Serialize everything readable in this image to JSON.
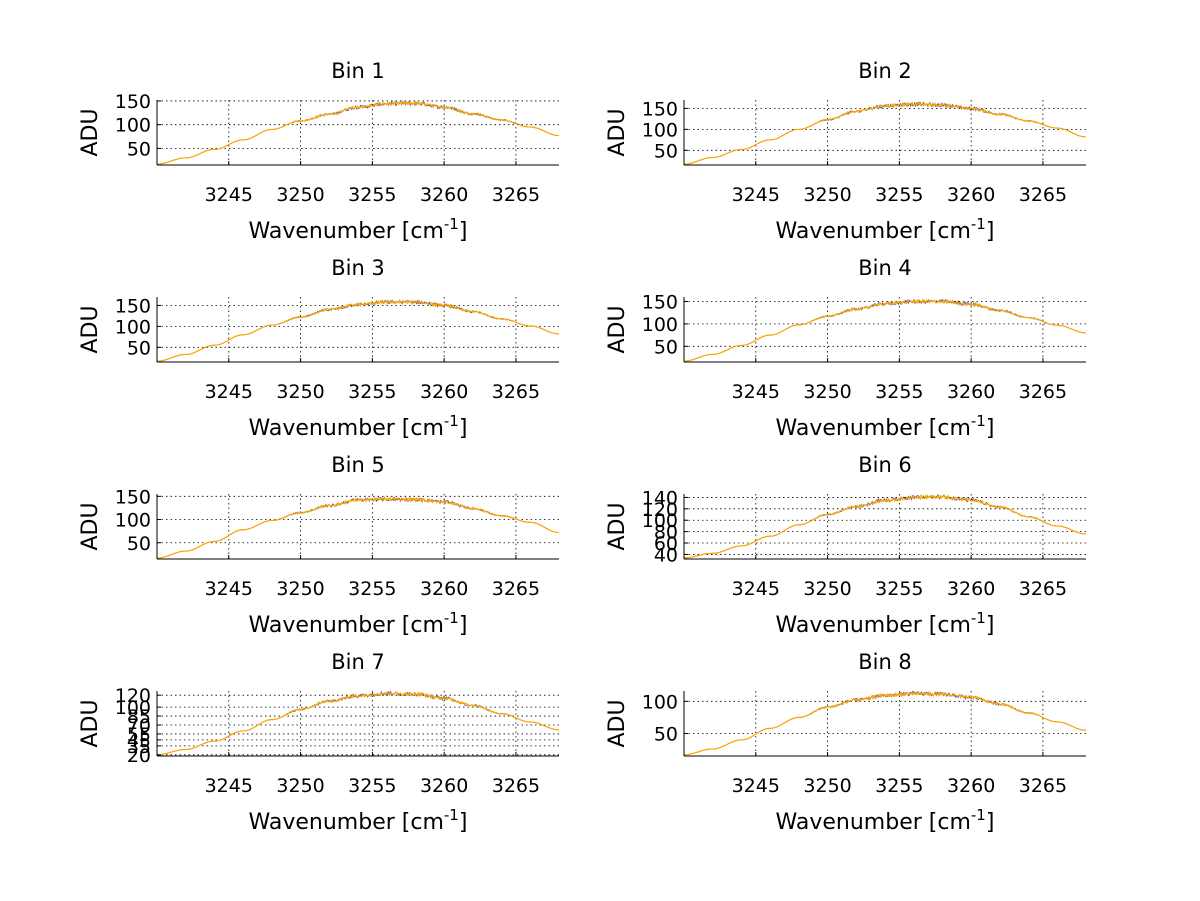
{
  "figure": {
    "background": "#ffffff",
    "line_color": "#ffa500",
    "noise_color": "#1a1a5a",
    "grid_color": "#000000"
  },
  "chart_data": [
    {
      "type": "line",
      "title": "Bin 1",
      "xlabel": "Wavenumber [cm",
      "xlabel_sup": "-1",
      "xlabel_end": "]",
      "ylabel": "ADU",
      "grid": true,
      "xlim": [
        3240,
        3268
      ],
      "xticks": [
        3245,
        3250,
        3255,
        3260,
        3265
      ],
      "ylim": [
        15,
        152
      ],
      "yticks": [
        50,
        100,
        150
      ],
      "series": [
        {
          "x": [
            3240,
            3242,
            3244,
            3246,
            3248,
            3250,
            3252,
            3254,
            3256,
            3258,
            3260,
            3262,
            3264,
            3266,
            3268
          ],
          "values": [
            17,
            30,
            48,
            68,
            90,
            108,
            122,
            137,
            144,
            145,
            137,
            123,
            110,
            95,
            77
          ]
        }
      ]
    },
    {
      "type": "line",
      "title": "Bin 2",
      "xlabel": "Wavenumber [cm",
      "xlabel_sup": "-1",
      "xlabel_end": "]",
      "ylabel": "ADU",
      "grid": true,
      "xlim": [
        3240,
        3268
      ],
      "xticks": [
        3245,
        3250,
        3255,
        3260,
        3265
      ],
      "ylim": [
        15,
        170
      ],
      "yticks": [
        50,
        100,
        150
      ],
      "series": [
        {
          "x": [
            3240,
            3242,
            3244,
            3246,
            3248,
            3250,
            3252,
            3254,
            3256,
            3258,
            3260,
            3262,
            3264,
            3266,
            3268
          ],
          "values": [
            17,
            33,
            52,
            75,
            100,
            123,
            143,
            156,
            160,
            158,
            150,
            136,
            120,
            103,
            82
          ]
        }
      ]
    },
    {
      "type": "line",
      "title": "Bin 3",
      "xlabel": "Wavenumber [cm",
      "xlabel_sup": "-1",
      "xlabel_end": "]",
      "ylabel": "ADU",
      "grid": true,
      "xlim": [
        3240,
        3268
      ],
      "xticks": [
        3245,
        3250,
        3255,
        3260,
        3265
      ],
      "ylim": [
        15,
        170
      ],
      "yticks": [
        50,
        100,
        150
      ],
      "series": [
        {
          "x": [
            3240,
            3242,
            3244,
            3246,
            3248,
            3250,
            3252,
            3254,
            3256,
            3258,
            3260,
            3262,
            3264,
            3266,
            3268
          ],
          "values": [
            17,
            33,
            55,
            80,
            103,
            122,
            140,
            152,
            158,
            158,
            150,
            135,
            118,
            101,
            82
          ]
        }
      ]
    },
    {
      "type": "line",
      "title": "Bin 4",
      "xlabel": "Wavenumber [cm",
      "xlabel_sup": "-1",
      "xlabel_end": "]",
      "ylabel": "ADU",
      "grid": true,
      "xlim": [
        3240,
        3268
      ],
      "xticks": [
        3245,
        3250,
        3255,
        3260,
        3265
      ],
      "ylim": [
        15,
        160
      ],
      "yticks": [
        50,
        100,
        150
      ],
      "series": [
        {
          "x": [
            3240,
            3242,
            3244,
            3246,
            3248,
            3250,
            3252,
            3254,
            3256,
            3258,
            3260,
            3262,
            3264,
            3266,
            3268
          ],
          "values": [
            17,
            32,
            52,
            75,
            98,
            117,
            133,
            145,
            150,
            150,
            144,
            130,
            114,
            97,
            80
          ]
        }
      ]
    },
    {
      "type": "line",
      "title": "Bin 5",
      "xlabel": "Wavenumber [cm",
      "xlabel_sup": "-1",
      "xlabel_end": "]",
      "ylabel": "ADU",
      "grid": true,
      "xlim": [
        3240,
        3268
      ],
      "xticks": [
        3245,
        3250,
        3255,
        3260,
        3265
      ],
      "ylim": [
        15,
        155
      ],
      "yticks": [
        50,
        100,
        150
      ],
      "series": [
        {
          "x": [
            3240,
            3242,
            3244,
            3246,
            3248,
            3250,
            3252,
            3254,
            3256,
            3258,
            3260,
            3262,
            3264,
            3266,
            3268
          ],
          "values": [
            17,
            32,
            53,
            78,
            98,
            115,
            130,
            142,
            144,
            143,
            138,
            124,
            108,
            94,
            72
          ]
        }
      ]
    },
    {
      "type": "line",
      "title": "Bin 6",
      "xlabel": "Wavenumber [cm",
      "xlabel_sup": "-1",
      "xlabel_end": "]",
      "ylabel": "ADU",
      "grid": true,
      "xlim": [
        3240,
        3268
      ],
      "xticks": [
        3245,
        3250,
        3255,
        3260,
        3265
      ],
      "ylim": [
        32,
        146
      ],
      "yticks": [
        40,
        60,
        80,
        100,
        120,
        140
      ],
      "ytick_labels": [
        "40",
        "60",
        "80",
        "100",
        "120",
        "140"
      ],
      "series": [
        {
          "x": [
            3240,
            3242,
            3244,
            3246,
            3248,
            3250,
            3252,
            3254,
            3256,
            3258,
            3260,
            3262,
            3264,
            3266,
            3268
          ],
          "values": [
            34,
            42,
            55,
            72,
            92,
            110,
            124,
            135,
            140,
            141,
            135,
            123,
            106,
            90,
            76
          ]
        }
      ]
    },
    {
      "type": "line",
      "title": "Bin 7",
      "xlabel": "Wavenumber [cm",
      "xlabel_sup": "-1",
      "xlabel_end": "]",
      "ylabel": "ADU",
      "grid": true,
      "xlim": [
        3240,
        3268
      ],
      "xticks": [
        3245,
        3250,
        3255,
        3260,
        3265
      ],
      "ylim": [
        18,
        127
      ],
      "yticks": [
        20,
        35,
        45,
        55,
        70,
        85,
        100,
        120
      ],
      "ytick_labels": [
        "20",
        "35",
        "45",
        "55",
        "70",
        "85",
        "100",
        "120"
      ],
      "series": [
        {
          "x": [
            3240,
            3242,
            3244,
            3246,
            3248,
            3250,
            3252,
            3254,
            3256,
            3258,
            3260,
            3262,
            3264,
            3266,
            3268
          ],
          "values": [
            20,
            29,
            43,
            60,
            79,
            96,
            110,
            119,
            123,
            122,
            115,
            103,
            89,
            75,
            62
          ]
        }
      ]
    },
    {
      "type": "line",
      "title": "Bin 8",
      "xlabel": "Wavenumber [cm",
      "xlabel_sup": "-1",
      "xlabel_end": "]",
      "ylabel": "ADU",
      "grid": true,
      "xlim": [
        3240,
        3268
      ],
      "xticks": [
        3245,
        3250,
        3255,
        3260,
        3265
      ],
      "ylim": [
        15,
        116
      ],
      "yticks": [
        50,
        100
      ],
      "series": [
        {
          "x": [
            3240,
            3242,
            3244,
            3246,
            3248,
            3250,
            3252,
            3254,
            3256,
            3258,
            3260,
            3262,
            3264,
            3266,
            3268
          ],
          "values": [
            17,
            26,
            40,
            58,
            75,
            91,
            102,
            109,
            112,
            111,
            106,
            96,
            82,
            68,
            55
          ]
        }
      ]
    }
  ]
}
